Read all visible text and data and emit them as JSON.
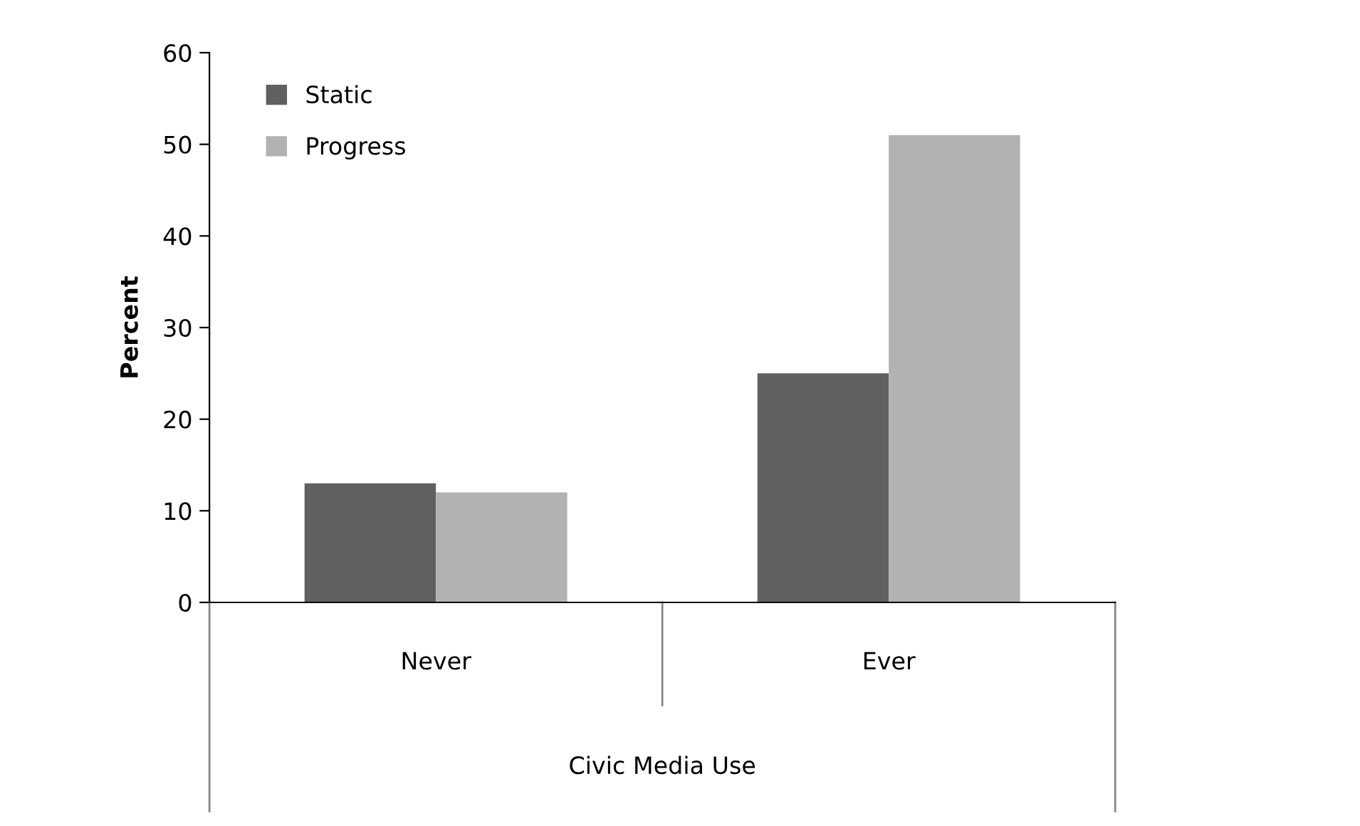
{
  "chart_data": {
    "type": "bar",
    "xlabel": "Civic Media Use",
    "ylabel": "Percent",
    "categories": [
      "Never",
      "Ever"
    ],
    "series": [
      {
        "name": "Static",
        "color": "#606060",
        "values": [
          13,
          25
        ]
      },
      {
        "name": "Progress",
        "color": "#b2b2b2",
        "values": [
          12,
          51
        ]
      }
    ],
    "ylim": [
      0,
      60
    ],
    "yticks": [
      0,
      10,
      20,
      30,
      40,
      50,
      60
    ],
    "grid": false,
    "legend": "top left"
  }
}
